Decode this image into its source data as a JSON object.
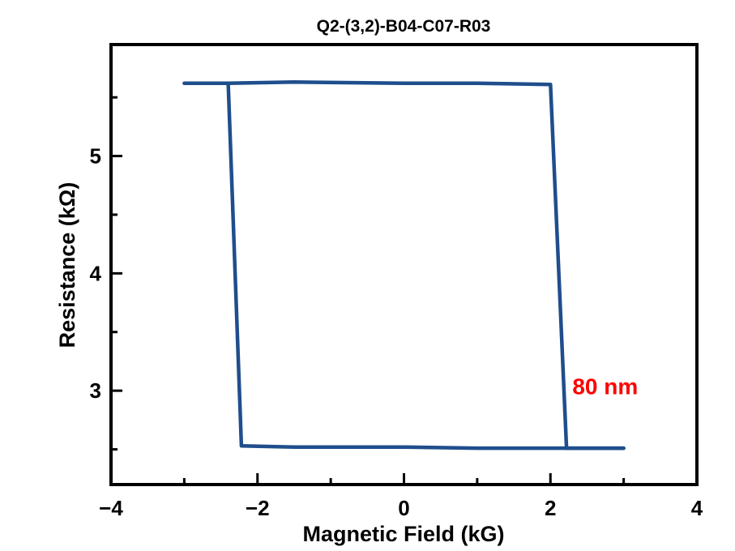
{
  "chart_data": {
    "type": "line",
    "title": "Q2-(3,2)-B04-C07-R03",
    "xlabel": "Magnetic Field (kG)",
    "ylabel": "Resistance (kΩ)",
    "xlim": [
      -4,
      4
    ],
    "ylim": [
      2.2,
      5.95
    ],
    "xticks": [
      -4,
      -2,
      0,
      2,
      4
    ],
    "xtick_labels": [
      "−4",
      "−2",
      "0",
      "2",
      "4"
    ],
    "yticks": [
      3,
      4,
      5
    ],
    "ytick_labels": [
      "3",
      "4",
      "5"
    ],
    "y_minor_ticks": [
      2.5,
      3.5,
      4.5,
      5.5
    ],
    "x_minor_ticks": [
      -3,
      -1,
      1,
      3
    ],
    "grid": false,
    "series": [
      {
        "color": "#1f4e8c",
        "x": [
          -3.0,
          -2.4,
          -1.5,
          0.0,
          1.0,
          2.0,
          2.22,
          3.0
        ],
        "y": [
          5.62,
          5.62,
          5.63,
          5.62,
          5.62,
          5.61,
          2.51,
          2.51
        ]
      },
      {
        "color": "#1f4e8c",
        "x": [
          3.0,
          2.22,
          1.0,
          0.0,
          -1.5,
          -2.22,
          -2.4
        ],
        "y": [
          2.51,
          2.51,
          2.51,
          2.52,
          2.52,
          2.53,
          5.62
        ]
      }
    ],
    "annotation": {
      "text": "80 nm",
      "color": "#ff0000",
      "x": 2.3,
      "y": 2.97
    }
  }
}
